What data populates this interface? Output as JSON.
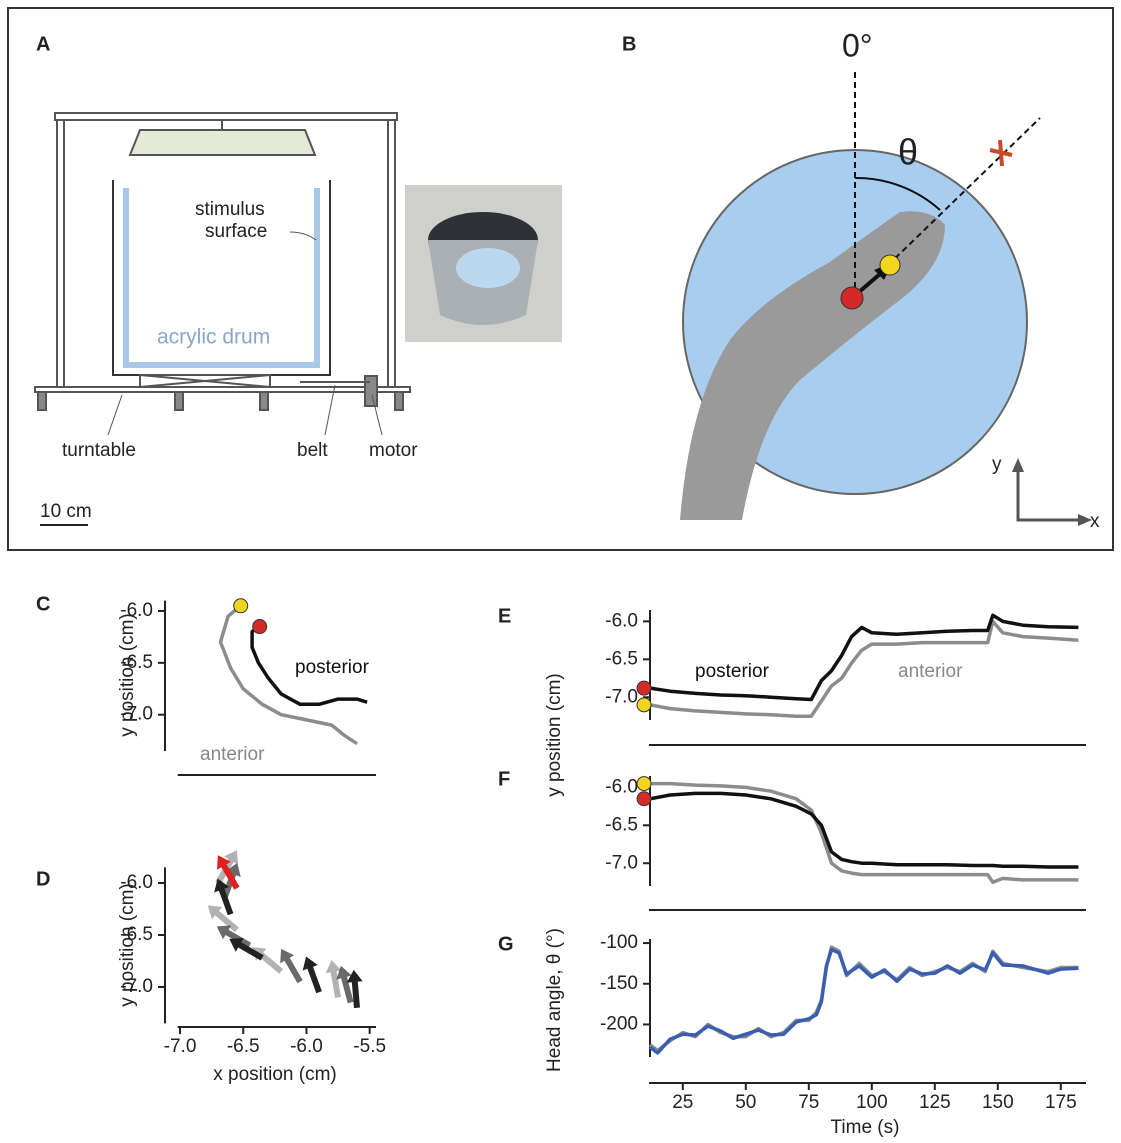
{
  "panel_a": {
    "label": "A",
    "stimulus_surface": [
      "stimulus",
      "surface"
    ],
    "drum": "acrylic drum",
    "turntable": "turntable",
    "belt": "belt",
    "motor": "motor",
    "scale": "10 cm"
  },
  "panel_b": {
    "label": "B",
    "zero": "0°",
    "theta": "θ",
    "y_axis": "y",
    "x_axis": "x"
  },
  "chart_data": [
    {
      "type": "line",
      "panel": "C",
      "ylabel": "y position (cm)",
      "xlim": [
        -7.05,
        -5.45
      ],
      "ylim": [
        -7.35,
        -5.9
      ],
      "yticks": [
        {
          "value": -6,
          "label": "-6.0"
        },
        -6.5,
        {
          "value": -7,
          "label": "-7.0"
        }
      ],
      "series": [
        {
          "name": "anterior",
          "color": "#8c8c8c",
          "marker": "#f2d51f",
          "x": [
            -6.52,
            -6.62,
            -6.68,
            -6.6,
            -6.5,
            -6.35,
            -6.2,
            -6.0,
            -5.8,
            -5.7,
            -5.6
          ],
          "values": [
            -5.95,
            -6.05,
            -6.3,
            -6.55,
            -6.75,
            -6.9,
            -7.0,
            -7.05,
            -7.1,
            -7.2,
            -7.28
          ]
        },
        {
          "name": "posterior",
          "color": "#111111",
          "marker": "#d42a2a",
          "x": [
            -6.37,
            -6.43,
            -6.43,
            -6.38,
            -6.3,
            -6.2,
            -6.05,
            -5.9,
            -5.75,
            -5.6,
            -5.52
          ],
          "values": [
            -6.15,
            -6.2,
            -6.35,
            -6.5,
            -6.65,
            -6.8,
            -6.9,
            -6.9,
            -6.85,
            -6.85,
            -6.88
          ]
        }
      ]
    },
    {
      "type": "quiver",
      "panel": "D",
      "ylabel": "y position (cm)",
      "xlabel": "x position (cm)",
      "xlim": [
        -7.05,
        -5.45
      ],
      "ylim": [
        -7.35,
        -5.85
      ],
      "xticks": [
        {
          "value": -7,
          "label": "-7.0"
        },
        -6.5,
        {
          "value": -6,
          "label": "-6.0"
        },
        -5.5
      ],
      "yticks": [
        {
          "value": -6,
          "label": "-6.0"
        },
        -6.5,
        {
          "value": -7,
          "label": "-7.0"
        }
      ],
      "series": [
        {
          "color": "#222222",
          "x": [
            -6.7,
            -6.65,
            -6.6,
            -6.55,
            -6.45,
            -6.35,
            -6.2,
            -6.05,
            -5.9,
            -5.75,
            -5.65,
            -5.6
          ],
          "values": [
            -6.0,
            -6.15,
            -6.3,
            -6.45,
            -6.6,
            -6.72,
            -6.85,
            -6.95,
            -7.05,
            -7.1,
            -7.15,
            -7.2
          ],
          "angles": [
            60,
            70,
            110,
            140,
            150,
            150,
            140,
            120,
            110,
            100,
            105,
            95
          ]
        },
        {
          "color": "#e02020",
          "x": [
            -6.55
          ],
          "values": [
            -6.05
          ],
          "angles": [
            120
          ]
        }
      ]
    },
    {
      "type": "line",
      "panel": "E",
      "ylabel": "y position (cm)",
      "xlim": [
        10,
        185
      ],
      "ylim": [
        -7.3,
        -5.85
      ],
      "yticks": [
        {
          "value": -6,
          "label": "-6.0"
        },
        -6.5,
        {
          "value": -7,
          "label": "-7.0"
        }
      ],
      "x": [
        12,
        20,
        30,
        40,
        50,
        60,
        70,
        76,
        80,
        84,
        88,
        92,
        96,
        100,
        110,
        120,
        130,
        140,
        146,
        148,
        152,
        160,
        170,
        182
      ],
      "series": [
        {
          "name": "anterior",
          "color": "#8c8c8c",
          "marker": "#f2d51f",
          "values": [
            -7.1,
            -7.15,
            -7.18,
            -7.2,
            -7.22,
            -7.23,
            -7.25,
            -7.25,
            -7.05,
            -6.85,
            -6.75,
            -6.55,
            -6.38,
            -6.3,
            -6.3,
            -6.28,
            -6.28,
            -6.28,
            -6.28,
            -6.0,
            -6.15,
            -6.2,
            -6.22,
            -6.25
          ]
        },
        {
          "name": "posterior",
          "color": "#111111",
          "marker": "#d42a2a",
          "values": [
            -6.88,
            -6.92,
            -6.95,
            -6.97,
            -6.98,
            -7.0,
            -7.02,
            -7.03,
            -6.78,
            -6.65,
            -6.45,
            -6.2,
            -6.08,
            -6.15,
            -6.17,
            -6.15,
            -6.13,
            -6.12,
            -6.12,
            -5.92,
            -6.0,
            -6.05,
            -6.07,
            -6.08
          ]
        }
      ]
    },
    {
      "type": "line",
      "panel": "F",
      "xlim": [
        10,
        185
      ],
      "ylim": [
        -7.3,
        -5.85
      ],
      "yticks": [
        {
          "value": -6,
          "label": "-6.0"
        },
        -6.5,
        {
          "value": -7,
          "label": "-7.0"
        }
      ],
      "x": [
        12,
        20,
        30,
        40,
        50,
        60,
        70,
        76,
        80,
        84,
        88,
        92,
        96,
        100,
        110,
        120,
        130,
        140,
        146,
        148,
        152,
        160,
        170,
        182
      ],
      "series": [
        {
          "color": "#8c8c8c",
          "marker": "#f2d51f",
          "values": [
            -5.95,
            -5.95,
            -5.97,
            -5.98,
            -6.0,
            -6.05,
            -6.15,
            -6.3,
            -6.6,
            -7.0,
            -7.1,
            -7.13,
            -7.15,
            -7.15,
            -7.15,
            -7.15,
            -7.15,
            -7.15,
            -7.15,
            -7.25,
            -7.2,
            -7.22,
            -7.22,
            -7.22
          ]
        },
        {
          "color": "#111111",
          "marker": "#d42a2a",
          "values": [
            -6.15,
            -6.1,
            -6.08,
            -6.08,
            -6.1,
            -6.15,
            -6.25,
            -6.35,
            -6.5,
            -6.85,
            -6.95,
            -6.98,
            -7.0,
            -7.0,
            -7.02,
            -7.02,
            -7.02,
            -7.03,
            -7.03,
            -7.03,
            -7.04,
            -7.04,
            -7.05,
            -7.05
          ]
        }
      ]
    },
    {
      "type": "line",
      "panel": "G",
      "ylabel": "Head angle, θ (°)",
      "xlabel": "Time (s)",
      "xlim": [
        10,
        185
      ],
      "ylim": [
        -240,
        -95
      ],
      "xticks": [
        25,
        50,
        75,
        100,
        125,
        150,
        175
      ],
      "yticks": [
        -100,
        -150,
        -200
      ],
      "x": [
        12,
        15,
        20,
        25,
        30,
        35,
        40,
        45,
        50,
        55,
        60,
        65,
        70,
        75,
        78,
        80,
        82,
        84,
        87,
        90,
        95,
        100,
        105,
        110,
        115,
        120,
        125,
        130,
        135,
        140,
        145,
        148,
        152,
        160,
        170,
        175,
        182
      ],
      "series": [
        {
          "color": "#8c8c8c",
          "values": [
            -225,
            -232,
            -220,
            -210,
            -215,
            -200,
            -210,
            -215,
            -215,
            -205,
            -215,
            -210,
            -195,
            -195,
            -185,
            -170,
            -130,
            -105,
            -110,
            -140,
            -125,
            -140,
            -135,
            -145,
            -130,
            -140,
            -135,
            -130,
            -135,
            -125,
            -135,
            -110,
            -125,
            -130,
            -135,
            -130,
            -130
          ]
        },
        {
          "color": "#3a5fb0",
          "values": [
            -228,
            -235,
            -218,
            -212,
            -213,
            -202,
            -208,
            -217,
            -212,
            -207,
            -213,
            -212,
            -197,
            -193,
            -188,
            -172,
            -128,
            -108,
            -112,
            -138,
            -128,
            -142,
            -133,
            -147,
            -132,
            -138,
            -137,
            -128,
            -137,
            -127,
            -133,
            -112,
            -127,
            -128,
            -137,
            -132,
            -131
          ]
        }
      ]
    }
  ]
}
